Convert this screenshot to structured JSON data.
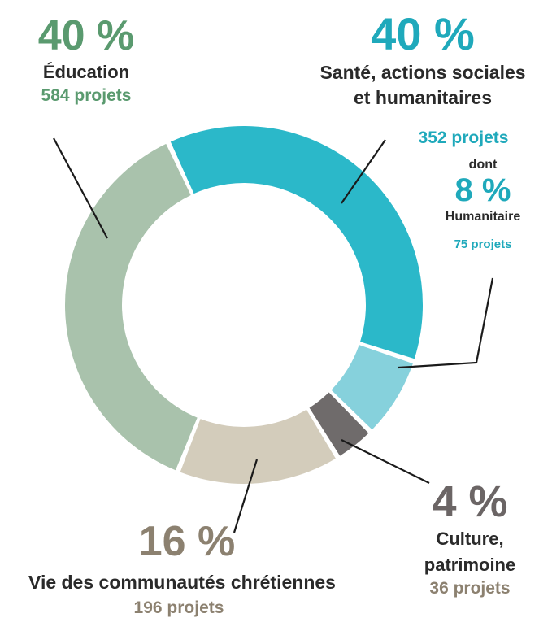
{
  "chart_data": {
    "type": "pie",
    "variant": "donut",
    "slices": [
      {
        "key": "sante",
        "percent": "40 %",
        "label": "Santé, actions sociales et humanitaires",
        "label_lines": [
          "Santé, actions sociales",
          "et humanitaires"
        ],
        "count_text": "352 projets",
        "color": "#2bb8c9"
      },
      {
        "key": "humanitaire",
        "percent": "8 %",
        "prefix": "dont",
        "label": "Humanitaire",
        "count_text": "75 projets",
        "color": "#86d1dc"
      },
      {
        "key": "culture",
        "percent": "4 %",
        "label": "Culture, patrimoine",
        "label_lines": [
          "Culture,",
          "patrimoine"
        ],
        "count_text": "36 projets",
        "color": "#6f6b6b"
      },
      {
        "key": "vie",
        "percent": "16 %",
        "label": "Vie des communautés chrétiennes",
        "count_text": "196 projets",
        "color": "#d3ccbb"
      },
      {
        "key": "education",
        "percent": "40 %",
        "label": "Éducation",
        "count_text": "584 projets",
        "color": "#a9c2ac"
      }
    ],
    "values": [
      40,
      8,
      4,
      16,
      40
    ],
    "colors": {
      "sante_text": "#1fa9bb",
      "education_text": "#5a9a6f",
      "vie_text": "#8c8170",
      "culture_text": "#6b6565"
    }
  }
}
